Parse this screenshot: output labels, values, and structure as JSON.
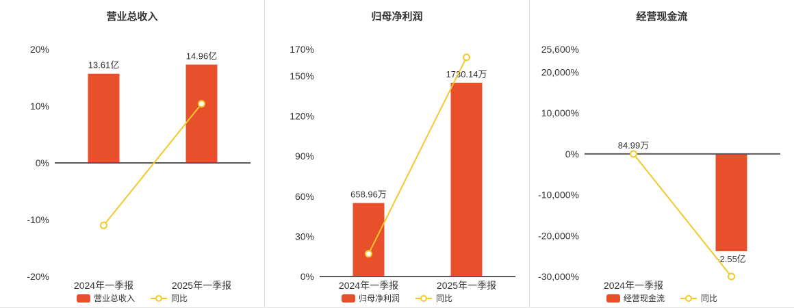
{
  "colors": {
    "bar": "#e8502c",
    "line": "#f5c829",
    "axis_text": "#333333",
    "zero_line": "#595959",
    "divider": "#dcdcdc",
    "title": "#333333",
    "background": "#ffffff"
  },
  "chart_data": [
    {
      "type": "bar+line",
      "title": "营业总收入",
      "categories": [
        "2024年一季报",
        "2025年一季报"
      ],
      "axis": {
        "min": -20,
        "max": 20,
        "ticks": [
          {
            "value": 20,
            "label": "20%"
          },
          {
            "value": 10,
            "label": "10%"
          },
          {
            "value": 0,
            "label": "0%"
          },
          {
            "value": -10,
            "label": "-10%"
          },
          {
            "value": -20,
            "label": "-20%"
          }
        ]
      },
      "bars": {
        "name": "营业总收入",
        "labels": [
          "13.61亿",
          "14.96亿"
        ],
        "plot_values": [
          15.7,
          17.3
        ]
      },
      "line": {
        "name": "同比",
        "values": [
          -11,
          10.4
        ]
      },
      "legend": [
        {
          "type": "bar",
          "label": "营业总收入"
        },
        {
          "type": "line",
          "label": "同比"
        }
      ]
    },
    {
      "type": "bar+line",
      "title": "归母净利润",
      "categories": [
        "2024年一季报",
        "2025年一季报"
      ],
      "axis": {
        "min": 0,
        "max": 170,
        "ticks": [
          {
            "value": 170,
            "label": "170%"
          },
          {
            "value": 150,
            "label": "150%"
          },
          {
            "value": 120,
            "label": "120%"
          },
          {
            "value": 90,
            "label": "90%"
          },
          {
            "value": 60,
            "label": "60%"
          },
          {
            "value": 30,
            "label": "30%"
          },
          {
            "value": 0,
            "label": "0%"
          }
        ]
      },
      "bars": {
        "name": "归母净利润",
        "labels": [
          "658.96万",
          "1730.14万"
        ],
        "plot_values": [
          55,
          145
        ]
      },
      "line": {
        "name": "同比",
        "values": [
          17,
          164
        ]
      },
      "legend": [
        {
          "type": "bar",
          "label": "归母净利润"
        },
        {
          "type": "line",
          "label": "同比"
        }
      ]
    },
    {
      "type": "bar+line",
      "title": "经营现金流",
      "categories": [
        "2024年一季报",
        ""
      ],
      "axis": {
        "min": -30000,
        "max": 25600,
        "ticks": [
          {
            "value": 25600,
            "label": "25,600%"
          },
          {
            "value": 20000,
            "label": "20,000%"
          },
          {
            "value": 10000,
            "label": "10,000%"
          },
          {
            "value": 0,
            "label": "0%"
          },
          {
            "value": -10000,
            "label": "-10,000%"
          },
          {
            "value": -20000,
            "label": "-20,000%"
          },
          {
            "value": -30000,
            "label": "-30,000%"
          }
        ]
      },
      "bars": {
        "name": "经营现金流",
        "labels": [
          "84.99万",
          "-2.55亿"
        ],
        "plot_values": [
          0,
          -23800
        ]
      },
      "line": {
        "name": "同比",
        "values": [
          0,
          -30000
        ]
      },
      "legend": [
        {
          "type": "bar",
          "label": "经营现金流"
        },
        {
          "type": "line",
          "label": "同比"
        }
      ]
    }
  ]
}
